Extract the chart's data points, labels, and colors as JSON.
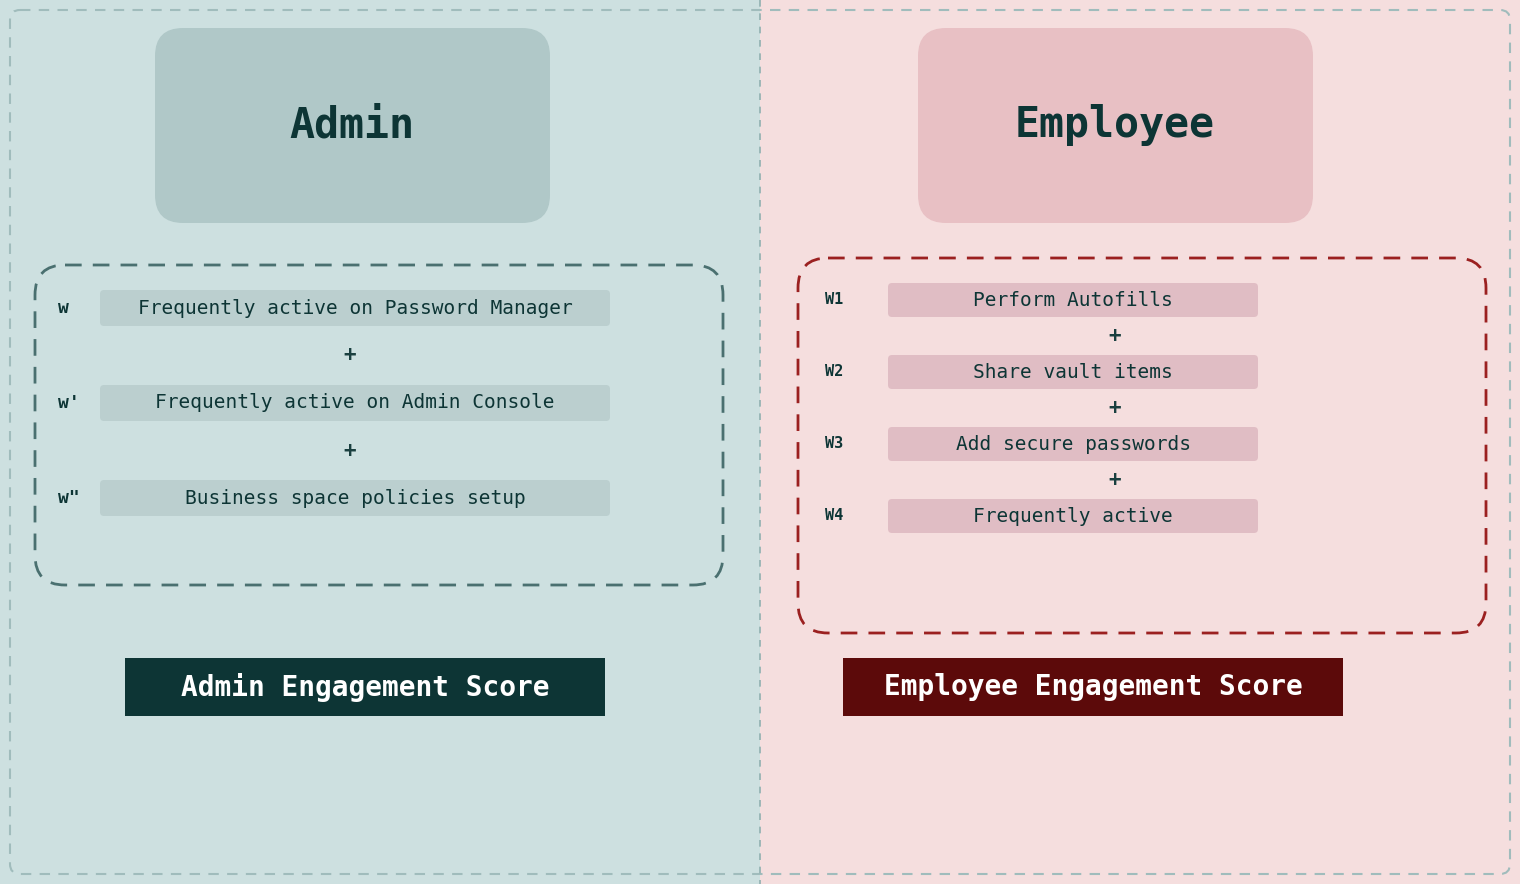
{
  "left_bg": "#cde0e0",
  "right_bg": "#f5dede",
  "left_title": "Admin",
  "right_title": "Employee",
  "left_title_box_color": "#b0c8c8",
  "right_title_box_color": "#e8c0c4",
  "title_text_color": "#0d3535",
  "item_text_color": "#0d3535",
  "admin_items": [
    {
      "label": "w",
      "text": "Frequently active on Password Manager"
    },
    {
      "label": "w'",
      "text": "Frequently active on Admin Console"
    },
    {
      "label": "w\"",
      "text": "Business space policies setup"
    }
  ],
  "employee_items": [
    {
      "label": "W1",
      "text": "Perform Autofills"
    },
    {
      "label": "W2",
      "text": "Share vault items"
    },
    {
      "label": "W3",
      "text": "Add secure passwords"
    },
    {
      "label": "W4",
      "text": "Frequently active"
    }
  ],
  "admin_item_bg": "#b8cccc",
  "employee_item_bg": "#ddb8c0",
  "left_score_label": "Admin Engagement Score",
  "right_score_label": "Employee Engagement Score",
  "left_score_bg": "#0d3535",
  "right_score_bg": "#5c0a0a",
  "score_text_color": "#ffffff",
  "admin_dashed_border": "#4a7070",
  "employee_dashed_border": "#9b2020",
  "plus_color": "#1a4040",
  "outer_border_color": "#a0bcbc"
}
